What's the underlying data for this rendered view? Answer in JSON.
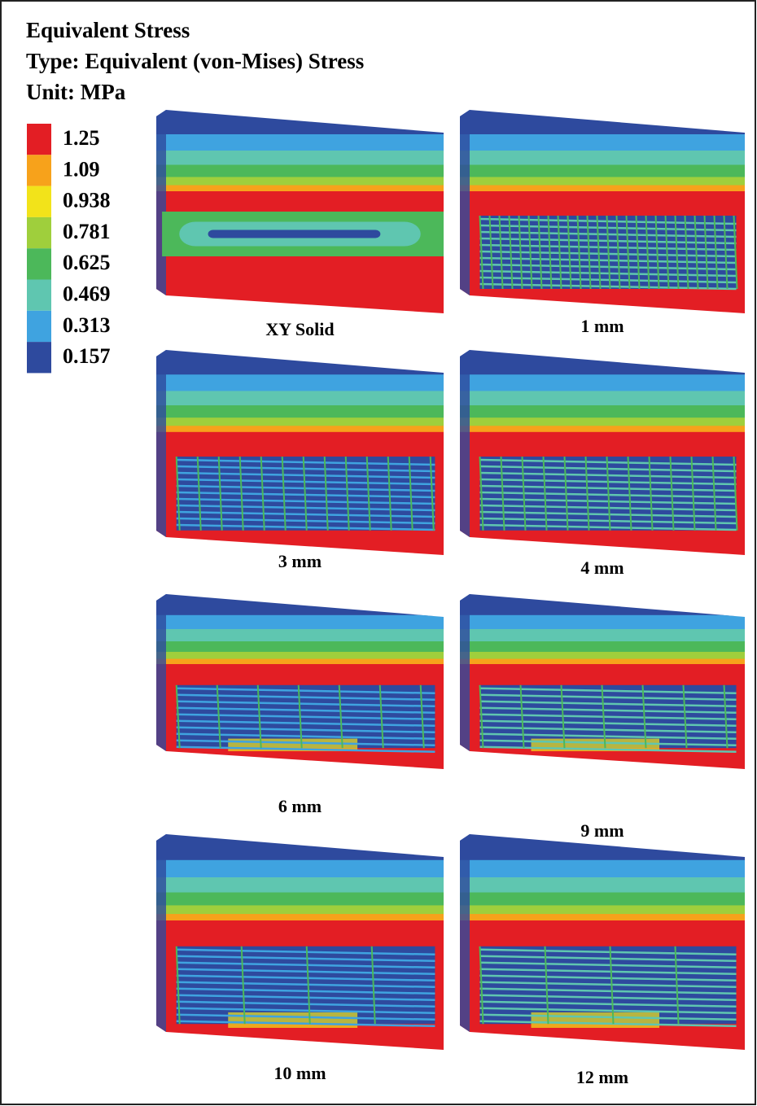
{
  "header": {
    "title": "Equivalent Stress",
    "type": "Type: Equivalent (von-Mises) Stress",
    "unit": "Unit: MPa"
  },
  "legend": [
    {
      "label": "1.25",
      "color": "#e31e24"
    },
    {
      "label": "1.09",
      "color": "#f7a21b"
    },
    {
      "label": "0.938",
      "color": "#f2e31a"
    },
    {
      "label": "0.781",
      "color": "#9fcf3c"
    },
    {
      "label": "0.625",
      "color": "#4cb85a"
    },
    {
      "label": "0.469",
      "color": "#5fc6b0"
    },
    {
      "label": "0.313",
      "color": "#3fa3e0"
    },
    {
      "label": "0.157",
      "color": "#2e4a9e"
    }
  ],
  "panels": [
    {
      "label": "XY Solid"
    },
    {
      "label": "1 mm"
    },
    {
      "label": "3 mm"
    },
    {
      "label": "4 mm"
    },
    {
      "label": "6 mm"
    },
    {
      "label": "9 mm"
    },
    {
      "label": "10 mm"
    },
    {
      "label": "12 mm"
    }
  ]
}
